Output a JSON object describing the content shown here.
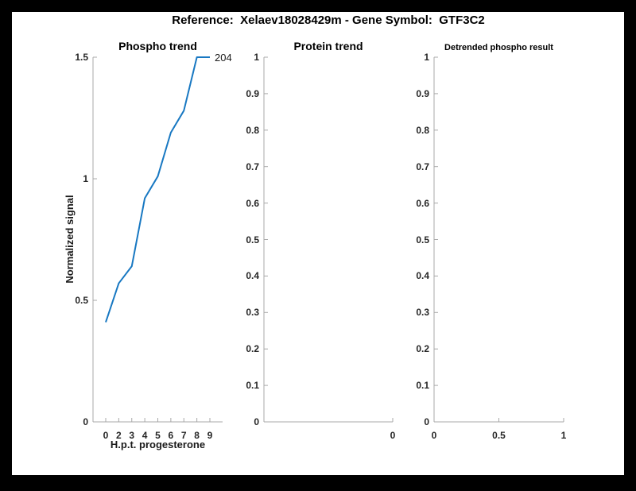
{
  "figure": {
    "title": "Reference:  Xelaev18028429m - Gene Symbol:  GTF3C2"
  },
  "colors": {
    "page_background": "#000000",
    "figure_background": "#ffffff",
    "line_blue": "#1878c2",
    "axis_line": "#a8a8a8",
    "tick_text": "#262626",
    "title_text": "#000000"
  },
  "chart_data": [
    {
      "type": "line",
      "title": "Phospho trend",
      "xlabel": "H.p.t. progesterone",
      "ylabel": "Normalized signal",
      "x_tick_labels": [
        "0",
        "2",
        "3",
        "4",
        "5",
        "6",
        "7",
        "8",
        "9"
      ],
      "y_ticks": [
        0,
        0.5,
        1,
        1.5
      ],
      "ylim": [
        0,
        1.5
      ],
      "grid": false,
      "end_label": "204",
      "series": [
        {
          "name": "204",
          "values": [
            0.41,
            0.57,
            0.64,
            0.92,
            1.01,
            1.19,
            1.28,
            1.5,
            1.5
          ]
        }
      ]
    },
    {
      "type": "line",
      "title": "Protein trend",
      "xlabel": "",
      "ylabel": "",
      "x_tick_labels": [
        "0"
      ],
      "y_ticks": [
        0,
        0.1,
        0.2,
        0.3,
        0.4,
        0.5,
        0.6,
        0.7,
        0.8,
        0.9,
        1
      ],
      "ylim": [
        0,
        1
      ],
      "grid": false,
      "series": []
    },
    {
      "type": "line",
      "title": "Detrended phospho result",
      "xlabel": "",
      "ylabel": "",
      "x_tick_labels": [
        "0",
        "0.5",
        "1"
      ],
      "y_ticks": [
        0,
        0.1,
        0.2,
        0.3,
        0.4,
        0.5,
        0.6,
        0.7,
        0.8,
        0.9,
        1
      ],
      "ylim": [
        0,
        1
      ],
      "grid": false,
      "series": []
    }
  ]
}
